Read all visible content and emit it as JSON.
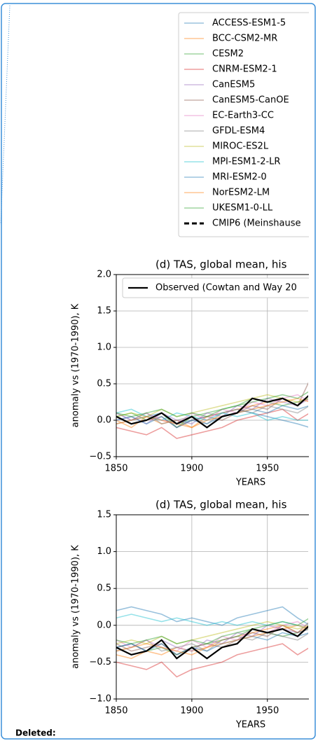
{
  "chart_data": [
    {
      "type": "line",
      "title": "(d) TAS, global mean, his",
      "xlabel": "YEARS",
      "ylabel": "anomaly vs (1970-1990), K",
      "x": [
        1850,
        1860,
        1870,
        1880,
        1890,
        1900,
        1910,
        1920,
        1930,
        1940,
        1950,
        1960,
        1970,
        1978
      ],
      "xlim": [
        1850,
        1977
      ],
      "xticks": [
        1850,
        1900,
        1950
      ],
      "ylim": [
        -0.5,
        2.0
      ],
      "yticks": [
        {
          "value": -0.5,
          "label": "−0.5"
        },
        {
          "value": 0,
          "label": "0.0"
        },
        0.5,
        {
          "value": 1,
          "label": "1.0"
        },
        1.5,
        {
          "value": 2,
          "label": "2.0"
        }
      ],
      "grid": true,
      "alpha": 0.45,
      "series": [
        {
          "name": "ACCESS-ESM1-5",
          "color": "#1f77b4",
          "values": [
            0.1,
            0.0,
            0.05,
            0.1,
            -0.05,
            0.0,
            0.05,
            0.1,
            0.15,
            0.1,
            0.05,
            0.0,
            -0.05,
            -0.1
          ]
        },
        {
          "name": "BCC-CSM2-MR",
          "color": "#ff7f0e",
          "values": [
            0.0,
            -0.1,
            0.05,
            -0.05,
            0.0,
            -0.1,
            0.05,
            0.1,
            0.15,
            0.2,
            0.25,
            0.3,
            0.2,
            0.35
          ]
        },
        {
          "name": "CESM2",
          "color": "#2ca02c",
          "values": [
            0.05,
            0.1,
            0.0,
            0.1,
            -0.1,
            0.05,
            0.1,
            0.15,
            0.2,
            0.3,
            0.25,
            0.2,
            0.25,
            0.3
          ]
        },
        {
          "name": "CNRM-ESM2-1",
          "color": "#d62728",
          "values": [
            -0.1,
            -0.15,
            -0.2,
            -0.1,
            -0.25,
            -0.2,
            -0.15,
            -0.1,
            0.0,
            0.05,
            0.1,
            0.15,
            0.0,
            0.1
          ]
        },
        {
          "name": "CanESM5",
          "color": "#9467bd",
          "values": [
            0.0,
            0.05,
            -0.05,
            0.1,
            0.0,
            -0.05,
            0.1,
            0.05,
            0.2,
            0.15,
            0.3,
            0.25,
            0.2,
            0.3
          ]
        },
        {
          "name": "CanESM5-CanOE",
          "color": "#8c564b",
          "values": [
            0.05,
            -0.05,
            0.0,
            0.05,
            -0.1,
            0.0,
            0.05,
            0.0,
            0.1,
            0.2,
            0.15,
            0.3,
            0.2,
            0.55
          ]
        },
        {
          "name": "EC-Earth3-CC",
          "color": "#e377c2",
          "values": [
            0.1,
            0.0,
            0.1,
            0.0,
            -0.05,
            0.1,
            0.0,
            0.15,
            0.1,
            0.25,
            0.2,
            0.3,
            0.35,
            0.25
          ]
        },
        {
          "name": "GFDL-ESM4",
          "color": "#7f7f7f",
          "values": [
            -0.05,
            0.0,
            0.1,
            -0.05,
            0.0,
            0.05,
            -0.05,
            0.1,
            0.15,
            0.1,
            0.2,
            0.15,
            0.1,
            0.2
          ]
        },
        {
          "name": "MIROC-ES2L",
          "color": "#bcbd22",
          "values": [
            0.05,
            0.1,
            0.05,
            0.15,
            0.05,
            0.1,
            0.15,
            0.2,
            0.25,
            0.3,
            0.35,
            0.3,
            0.25,
            0.3
          ]
        },
        {
          "name": "MPI-ESM1-2-LR",
          "color": "#17becf",
          "values": [
            0.1,
            0.15,
            0.05,
            0.0,
            0.1,
            0.05,
            0.0,
            0.1,
            0.05,
            0.1,
            0.0,
            0.05,
            0.0,
            0.0
          ]
        },
        {
          "name": "MRI-ESM2-0",
          "color": "#1f77b4",
          "values": [
            0.0,
            0.05,
            -0.05,
            0.05,
            -0.1,
            0.0,
            -0.05,
            0.05,
            0.1,
            0.15,
            0.1,
            0.2,
            0.15,
            0.2
          ]
        },
        {
          "name": "NorESM2-LM",
          "color": "#ff7f0e",
          "values": [
            -0.05,
            0.0,
            0.05,
            0.0,
            -0.05,
            -0.1,
            0.0,
            0.05,
            0.1,
            0.15,
            0.2,
            0.25,
            0.3,
            0.25
          ]
        },
        {
          "name": "UKESM1-0-LL",
          "color": "#2ca02c",
          "values": [
            0.1,
            0.05,
            0.1,
            0.15,
            0.05,
            0.1,
            0.05,
            0.15,
            0.2,
            0.25,
            0.3,
            0.35,
            0.3,
            0.4
          ]
        },
        {
          "name": "CMIP6 (Meinshause",
          "color": "#000000",
          "linestyle": "dashed"
        }
      ],
      "observed": {
        "name": "Observed (Cowtan and Way 20",
        "color": "#000000",
        "values": [
          0.05,
          -0.05,
          0.0,
          0.1,
          -0.05,
          0.05,
          -0.1,
          0.05,
          0.1,
          0.3,
          0.25,
          0.3,
          0.2,
          0.35
        ]
      }
    },
    {
      "type": "line",
      "title": "(d) TAS, global mean, his",
      "xlabel": "YEARS",
      "ylabel": "anomaly vs (1970-1990), K",
      "x": [
        1850,
        1860,
        1870,
        1880,
        1890,
        1900,
        1910,
        1920,
        1930,
        1940,
        1950,
        1960,
        1970,
        1978
      ],
      "xlim": [
        1850,
        1977
      ],
      "xticks": [
        1850,
        1900,
        1950
      ],
      "ylim": [
        -1.0,
        1.5
      ],
      "yticks": [
        {
          "value": -1,
          "label": "−1.0"
        },
        {
          "value": -0.5,
          "label": "−0.5"
        },
        {
          "value": 0,
          "label": "0.0"
        },
        0.5,
        {
          "value": 1,
          "label": "1.0"
        },
        1.5
      ],
      "grid": true,
      "alpha": 0.45,
      "series": [
        {
          "color": "#1f77b4",
          "values": [
            0.2,
            0.25,
            0.2,
            0.15,
            0.05,
            0.1,
            0.05,
            0.0,
            0.1,
            0.15,
            0.2,
            0.25,
            0.1,
            0.0
          ]
        },
        {
          "color": "#ff7f0e",
          "values": [
            -0.4,
            -0.45,
            -0.35,
            -0.4,
            -0.3,
            -0.35,
            -0.3,
            -0.2,
            -0.15,
            -0.1,
            -0.05,
            0.0,
            -0.1,
            0.0
          ]
        },
        {
          "color": "#2ca02c",
          "values": [
            -0.3,
            -0.25,
            -0.35,
            -0.3,
            -0.4,
            -0.3,
            -0.25,
            -0.2,
            -0.15,
            -0.05,
            -0.1,
            -0.15,
            -0.1,
            -0.05
          ]
        },
        {
          "color": "#d62728",
          "values": [
            -0.5,
            -0.55,
            -0.6,
            -0.5,
            -0.7,
            -0.6,
            -0.55,
            -0.5,
            -0.4,
            -0.35,
            -0.3,
            -0.25,
            -0.4,
            -0.3
          ]
        },
        {
          "color": "#9467bd",
          "values": [
            -0.3,
            -0.25,
            -0.35,
            -0.2,
            -0.3,
            -0.35,
            -0.2,
            -0.25,
            -0.1,
            -0.15,
            0.0,
            -0.05,
            -0.1,
            -0.05
          ]
        },
        {
          "color": "#8c564b",
          "values": [
            -0.25,
            -0.35,
            -0.3,
            -0.25,
            -0.4,
            -0.3,
            -0.25,
            -0.3,
            -0.2,
            -0.1,
            -0.15,
            0.0,
            -0.1,
            0.05
          ]
        },
        {
          "color": "#e377c2",
          "values": [
            -0.2,
            -0.3,
            -0.2,
            -0.3,
            -0.35,
            -0.2,
            -0.3,
            -0.15,
            -0.2,
            -0.05,
            -0.1,
            0.0,
            0.05,
            -0.05
          ]
        },
        {
          "color": "#7f7f7f",
          "values": [
            -0.35,
            -0.3,
            -0.2,
            -0.35,
            -0.3,
            -0.25,
            -0.35,
            -0.2,
            -0.15,
            -0.2,
            -0.1,
            -0.15,
            -0.2,
            -0.1
          ]
        },
        {
          "color": "#bcbd22",
          "values": [
            -0.25,
            -0.2,
            -0.25,
            -0.15,
            -0.25,
            -0.2,
            -0.15,
            -0.1,
            -0.05,
            0.0,
            0.05,
            0.0,
            -0.05,
            0.0
          ]
        },
        {
          "color": "#17becf",
          "values": [
            0.1,
            0.15,
            0.1,
            0.05,
            0.1,
            0.05,
            0.0,
            0.05,
            0.0,
            0.05,
            0.0,
            0.05,
            0.0,
            -0.05
          ]
        },
        {
          "color": "#1f77b4",
          "values": [
            -0.3,
            -0.25,
            -0.35,
            -0.25,
            -0.4,
            -0.3,
            -0.35,
            -0.25,
            -0.2,
            -0.15,
            -0.2,
            -0.1,
            -0.15,
            -0.1
          ]
        },
        {
          "color": "#ff7f0e",
          "values": [
            -0.35,
            -0.3,
            -0.25,
            -0.3,
            -0.35,
            -0.4,
            -0.3,
            -0.25,
            -0.2,
            -0.15,
            -0.1,
            -0.05,
            0.0,
            -0.05
          ]
        },
        {
          "color": "#2ca02c",
          "values": [
            -0.2,
            -0.25,
            -0.2,
            -0.15,
            -0.25,
            -0.2,
            -0.25,
            -0.15,
            -0.1,
            -0.05,
            0.0,
            0.05,
            0.0,
            0.1
          ]
        }
      ],
      "observed": {
        "color": "#000000",
        "values": [
          -0.3,
          -0.4,
          -0.35,
          -0.2,
          -0.45,
          -0.3,
          -0.45,
          -0.3,
          -0.25,
          -0.05,
          -0.1,
          -0.05,
          -0.15,
          0.0
        ]
      }
    }
  ],
  "footer": {
    "label": "Deleted:"
  }
}
